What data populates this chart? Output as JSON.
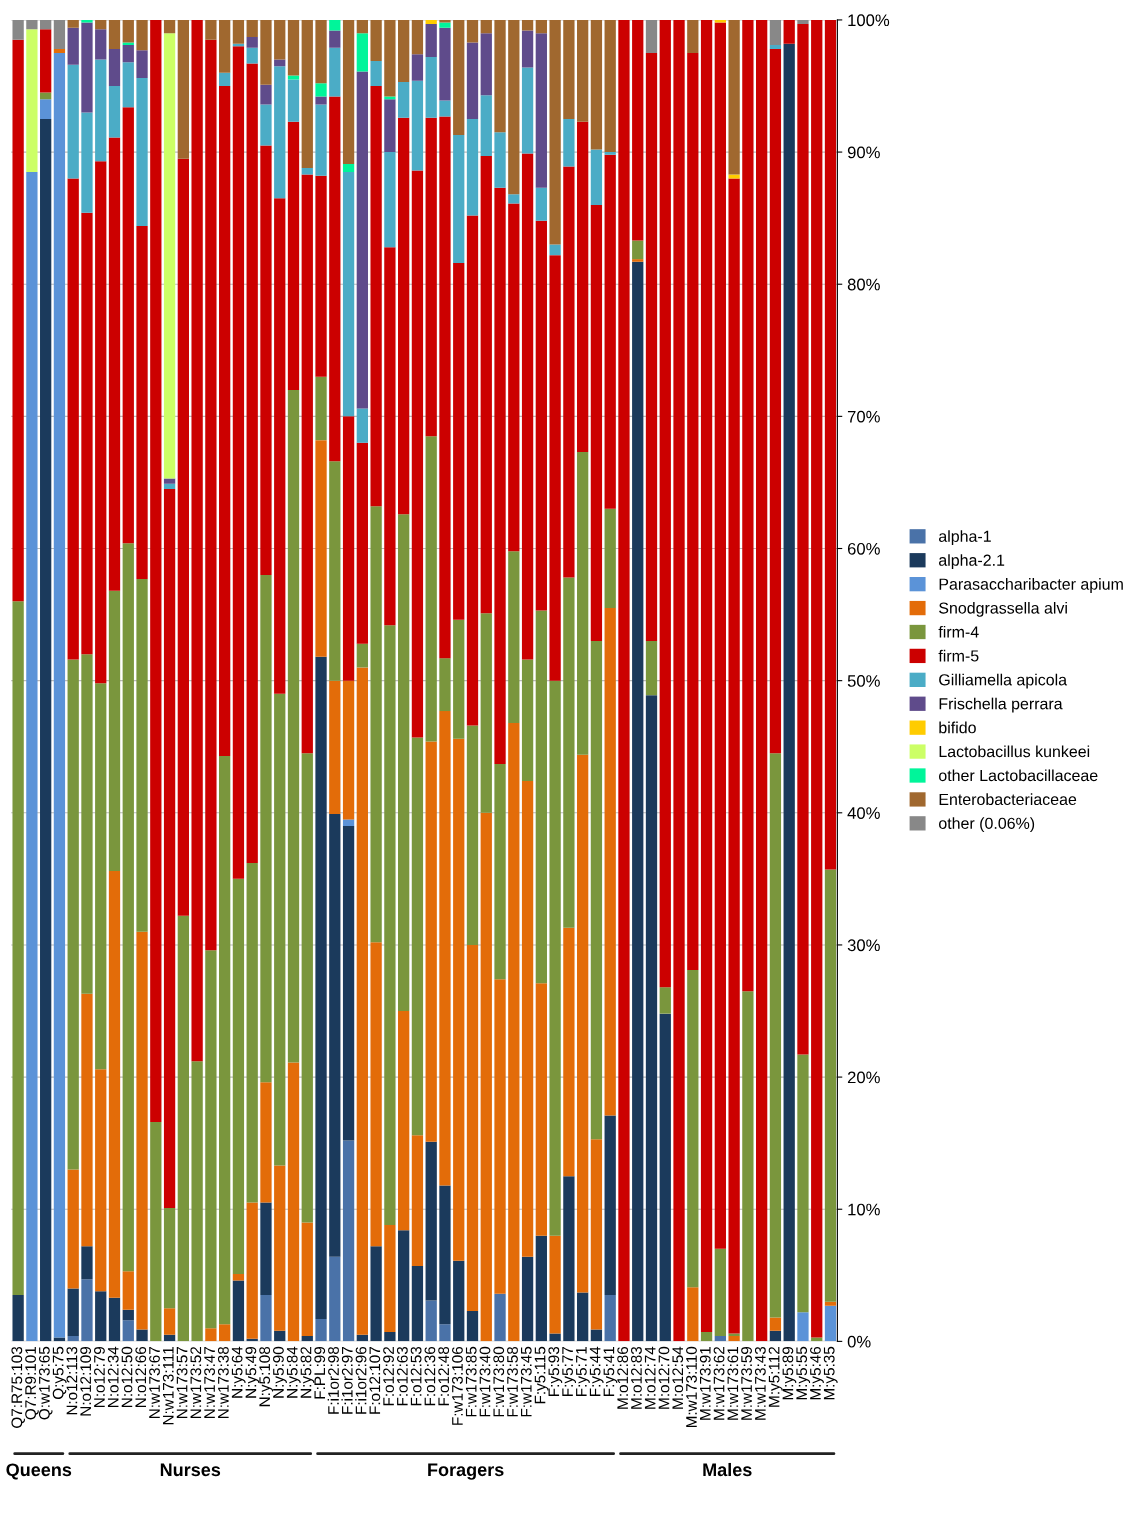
{
  "chart_data": {
    "type": "bar",
    "stacked": true,
    "categories": [
      "Q7:R75:103",
      "Q7:R9:101",
      "Q:w173:65",
      "Q:y5:75",
      "N:o12:113",
      "N:o12:109",
      "N:o12:79",
      "N:o12:34",
      "N:o12:50",
      "N:o12:66",
      "N:w173:67",
      "N:w173:111",
      "N:w173:57",
      "N:w173:52",
      "N:w173:47",
      "N:w173:38",
      "N:y5:64",
      "N:y5:49",
      "N:y5:108",
      "N:y5:90",
      "N:y5:84",
      "N:y5:82",
      "F:PL:99",
      "F:i1or2:98",
      "F:i1or2:97",
      "F:i1or2:96",
      "F:o12:107",
      "F:o12:92",
      "F:o12:63",
      "F:o12:53",
      "F:o12:36",
      "F:o12:48",
      "F:w173:106",
      "F:w173:85",
      "F:w173:40",
      "F:w173:80",
      "F:w173:58",
      "F:w173:45",
      "F:y5:115",
      "F:y5:93",
      "F:y5:77",
      "F:y5:71",
      "F:y5:44",
      "F:y5:41",
      "M:o12:86",
      "M:o12:83",
      "M:o12:74",
      "M:o12:70",
      "M:o12:54",
      "M:w173:110",
      "M:w173:91",
      "M:w173:62",
      "M:w173:61",
      "M:w173:59",
      "M:w173:43",
      "M:y5:112",
      "M:y5:89",
      "M:y5:55",
      "M:y5:46",
      "M:y5:35"
    ],
    "series": [
      {
        "name": "alpha-1",
        "color": "#4a72a8",
        "values": [
          0,
          0,
          0,
          0,
          0.4,
          4.7,
          0,
          0,
          1.6,
          0,
          0,
          0,
          0,
          0,
          0,
          0,
          0,
          0,
          3.5,
          0,
          0,
          0,
          1.7,
          6.4,
          15.2,
          0,
          0,
          0,
          0,
          0,
          3.1,
          1.3,
          0,
          0,
          0,
          3.6,
          0,
          0,
          0,
          0,
          0,
          0,
          0,
          3.5,
          0,
          0,
          0,
          0,
          0,
          0,
          0,
          0.4,
          0,
          0,
          0,
          0,
          0,
          0,
          0,
          0
        ]
      },
      {
        "name": "alpha-2.1",
        "color": "#1b3a5c",
        "values": [
          3.5,
          0,
          92.5,
          0.3,
          3.6,
          2.5,
          3.8,
          3.3,
          0.8,
          0.9,
          0,
          0.5,
          0,
          0,
          0,
          0,
          4.6,
          0.2,
          7,
          0.8,
          0,
          0.4,
          50.1,
          33.5,
          23.8,
          0.5,
          7.2,
          0.7,
          8.4,
          5.7,
          12,
          10.5,
          6.1,
          2.3,
          0,
          0,
          0,
          6.4,
          8,
          0.6,
          12.5,
          3.7,
          0.9,
          13.6,
          0,
          81.7,
          48.9,
          24.8,
          0,
          0,
          0,
          0,
          0,
          0,
          0,
          0.8,
          98.2,
          0,
          0,
          0
        ]
      },
      {
        "name": "Parasaccharibacter apium",
        "color": "#5b93d8",
        "values": [
          0,
          88.5,
          1.5,
          97.2,
          0,
          0,
          0,
          0,
          0,
          0,
          0,
          0,
          0,
          0,
          0,
          0,
          0,
          0,
          0,
          0,
          0,
          0,
          0,
          0,
          0.5,
          0,
          0,
          0,
          0,
          0,
          0,
          0,
          0,
          0,
          0,
          0,
          0,
          0,
          0,
          0,
          0,
          0,
          0,
          0,
          0,
          0,
          0,
          0,
          0,
          0,
          0,
          0,
          0,
          0,
          0,
          0,
          0,
          2.2,
          0,
          2.7
        ]
      },
      {
        "name": "Snodgrassella alvi",
        "color": "#e36c09",
        "values": [
          0,
          0,
          0,
          0.3,
          9,
          19.1,
          16.8,
          32.3,
          2.9,
          30.1,
          0,
          2,
          0,
          0,
          1,
          1.3,
          0.5,
          10.3,
          9.1,
          12.5,
          21.1,
          8.6,
          16.4,
          10.1,
          10.5,
          50.5,
          23,
          8.1,
          16.6,
          9.9,
          30.3,
          35.9,
          39.5,
          27.7,
          40,
          23.8,
          46.8,
          36,
          19.1,
          7.4,
          18.8,
          40.7,
          14.4,
          38.4,
          0,
          0.2,
          0,
          0,
          0,
          4.1,
          0,
          0,
          0.4,
          0,
          0,
          1,
          0,
          0,
          0,
          0.3
        ]
      },
      {
        "name": "firm-4",
        "color": "#7a963d",
        "values": [
          52.5,
          0,
          0.5,
          0,
          38.6,
          25.7,
          29.2,
          21.2,
          55.1,
          26.7,
          16.6,
          7.6,
          32.2,
          21.2,
          28.6,
          43,
          29.9,
          25.7,
          38.4,
          35.7,
          50.9,
          35.5,
          4.8,
          16.6,
          0,
          1.8,
          33,
          45.4,
          37.6,
          30.1,
          23.1,
          4,
          9,
          16.6,
          15.1,
          16.3,
          13,
          9.2,
          28.2,
          42,
          26.5,
          22.9,
          37.7,
          7.5,
          0,
          1.4,
          4.1,
          2,
          0,
          24,
          0.7,
          6.6,
          0.2,
          26.5,
          0,
          42.7,
          0,
          19.5,
          0.3,
          32.7
        ]
      },
      {
        "name": "firm-5",
        "color": "#cc0000",
        "values": [
          42.5,
          0,
          4.8,
          0,
          36.4,
          33.4,
          39.5,
          34.3,
          33,
          26.7,
          83.4,
          54.4,
          57.3,
          78.8,
          68.9,
          50.7,
          63,
          60.5,
          32.5,
          37.5,
          20.3,
          43.8,
          15.2,
          27.6,
          20,
          15.2,
          31.8,
          28.6,
          30,
          42.9,
          24.1,
          41,
          27,
          38.6,
          34.6,
          43.6,
          26.3,
          38.3,
          29.5,
          32.2,
          31.1,
          25,
          33,
          26.8,
          100,
          16.7,
          44.5,
          73.2,
          100,
          69.4,
          99.3,
          92.8,
          87.4,
          73.5,
          100,
          53.3,
          1.8,
          78,
          99.7,
          64.3
        ]
      },
      {
        "name": "Gilliamella apicola",
        "color": "#4bacc6",
        "values": [
          0,
          0,
          0,
          0,
          8.6,
          7.6,
          7.7,
          3.9,
          3.4,
          11.2,
          0,
          0.4,
          0,
          0,
          0,
          1,
          0.2,
          1.2,
          3.1,
          10,
          3.2,
          0.5,
          5.4,
          3.7,
          18.5,
          2.6,
          1.9,
          7.2,
          2.7,
          6.8,
          4.6,
          1.2,
          9.7,
          7.3,
          4.6,
          4.2,
          0.7,
          6.5,
          2.5,
          0.8,
          3.6,
          0,
          4.2,
          0.2,
          0,
          0,
          0,
          0,
          0,
          0,
          0,
          0,
          0,
          0,
          0,
          0.3,
          0,
          0,
          0,
          0
        ]
      },
      {
        "name": "Frischella perrara",
        "color": "#5f4b8b",
        "values": [
          0,
          0,
          0,
          0,
          2.8,
          6.8,
          2.3,
          2.8,
          1.3,
          2.1,
          0,
          0.4,
          0,
          0,
          0,
          0,
          0,
          0.8,
          1.5,
          0.5,
          0,
          0,
          0.6,
          1.3,
          0,
          25.5,
          0,
          4,
          0,
          2,
          2.5,
          5.5,
          0,
          5.8,
          4.7,
          0,
          0,
          2.8,
          11.7,
          0,
          0,
          0,
          0,
          0,
          0,
          0,
          0,
          0,
          0,
          0,
          0,
          0,
          0,
          0,
          0,
          0,
          0,
          0,
          0,
          0
        ]
      },
      {
        "name": "bifido",
        "color": "#ffcc00",
        "values": [
          0,
          0,
          0,
          0,
          0,
          0,
          0,
          0,
          0,
          0,
          0,
          0,
          0,
          0,
          0,
          0,
          0,
          0,
          0,
          0,
          0,
          0,
          0,
          0,
          0,
          0,
          0,
          0,
          0,
          0,
          0.3,
          0,
          0,
          0,
          0,
          0,
          0,
          0,
          0,
          0,
          0,
          0,
          0,
          0,
          0,
          0,
          0,
          0,
          0,
          0,
          0,
          0.2,
          0.3,
          0,
          0,
          0,
          0,
          0,
          0,
          0
        ]
      },
      {
        "name": "Lactobacillus kunkeei",
        "color": "#ccff66",
        "values": [
          0,
          10.8,
          0,
          0,
          0,
          0,
          0,
          0,
          0,
          0,
          0,
          33.7,
          0,
          0,
          0,
          0,
          0,
          0,
          0,
          0,
          0,
          0,
          0,
          0,
          0,
          0,
          0,
          0,
          0,
          0,
          0,
          0,
          0,
          0,
          0,
          0,
          0,
          0,
          0,
          0,
          0,
          0,
          0,
          0,
          0,
          0,
          0,
          0,
          0,
          0,
          0,
          0,
          0,
          0,
          0,
          0,
          0,
          0,
          0,
          0
        ]
      },
      {
        "name": "other Lactobacillaceae",
        "color": "#00f59a",
        "values": [
          0,
          0,
          0,
          0,
          0,
          0.2,
          0,
          0,
          0.2,
          0,
          0,
          0,
          0,
          0,
          0,
          0,
          0,
          0,
          0,
          0,
          0.3,
          0,
          1,
          0.8,
          0.6,
          2.9,
          0,
          0.2,
          0,
          0,
          0,
          0.4,
          0,
          0,
          0,
          0,
          0,
          0,
          0,
          0,
          0,
          0,
          0,
          0,
          0,
          0,
          0,
          0,
          0,
          0,
          0,
          0,
          0,
          0,
          0,
          0,
          0,
          0,
          0,
          0
        ]
      },
      {
        "name": "Enterobacteriaceae",
        "color": "#a0682f",
        "values": [
          0,
          0,
          0,
          0,
          0.6,
          0,
          0.7,
          2.2,
          1.7,
          2.3,
          0,
          1,
          10.5,
          0,
          1.5,
          4,
          1.8,
          1.3,
          4.9,
          3,
          4.2,
          11.2,
          4.8,
          0,
          10.9,
          1,
          3.1,
          5.8,
          4.7,
          2.6,
          0,
          0.2,
          8.7,
          1.7,
          1,
          8.5,
          13.2,
          0.8,
          1,
          17,
          7.5,
          7.7,
          9.8,
          10,
          0,
          0,
          0,
          0,
          0,
          2.5,
          0,
          0,
          11.7,
          0,
          0,
          0,
          0,
          0,
          0,
          0
        ]
      },
      {
        "name": "other (0.06%)",
        "color": "#888888",
        "values": [
          1.5,
          0.7,
          0.7,
          2.2,
          0,
          0,
          0,
          0,
          0,
          0,
          0,
          0,
          0,
          0,
          0,
          0,
          0,
          0,
          0,
          0,
          0,
          0,
          0,
          0,
          0,
          0,
          0,
          0,
          0,
          0,
          0,
          0,
          0,
          0,
          0,
          0,
          0,
          0,
          0,
          0,
          0,
          0,
          0,
          0,
          0,
          0,
          2.5,
          0,
          0,
          0,
          0,
          0,
          0,
          0,
          0,
          1.9,
          0,
          0.3,
          0,
          0
        ]
      }
    ],
    "ylim": [
      0,
      100
    ],
    "yticks": [
      {
        "value": 0,
        "label": "0%"
      },
      {
        "value": 10,
        "label": "10%"
      },
      {
        "value": 20,
        "label": "20%"
      },
      {
        "value": 30,
        "label": "30%"
      },
      {
        "value": 40,
        "label": "40%"
      },
      {
        "value": 50,
        "label": "50%"
      },
      {
        "value": 60,
        "label": "60%"
      },
      {
        "value": 70,
        "label": "70%"
      },
      {
        "value": 80,
        "label": "80%"
      },
      {
        "value": 90,
        "label": "90%"
      },
      {
        "value": 100,
        "label": "100%"
      }
    ],
    "grid": "y",
    "legend": "right",
    "annotations": [
      "Queens",
      "Nurses",
      "Foragers",
      "Males"
    ]
  }
}
